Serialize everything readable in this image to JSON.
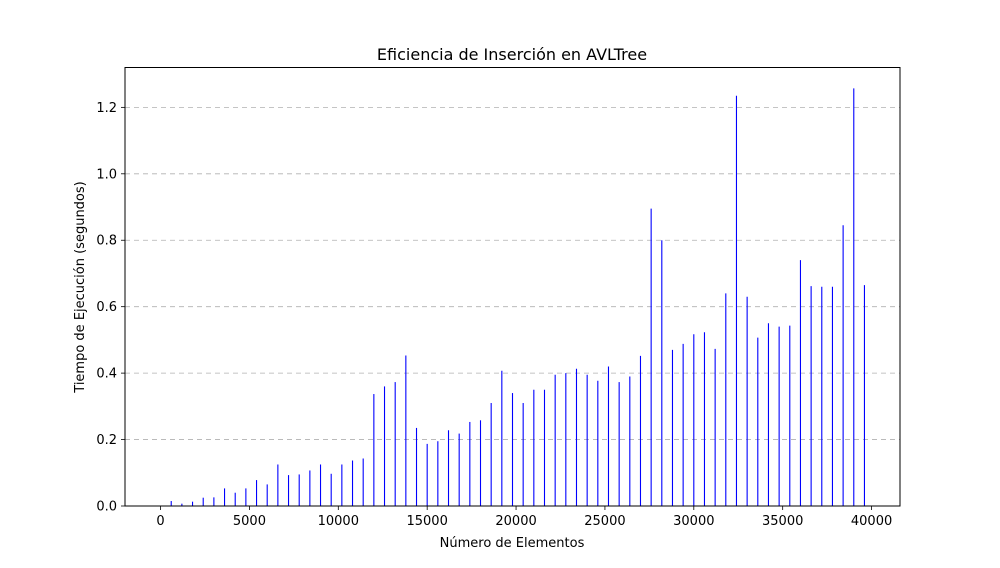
{
  "chart_data": {
    "type": "bar",
    "title": "Eficiencia de Inserción en AVLTree",
    "xlabel": "Número de Elementos",
    "ylabel": "Tiempo de Ejecución (segundos)",
    "xlim": [
      -2000,
      41600
    ],
    "ylim": [
      0,
      1.32
    ],
    "xticks": [
      0,
      5000,
      10000,
      15000,
      20000,
      25000,
      30000,
      35000,
      40000
    ],
    "xtick_labels": [
      "0",
      "5000",
      "10000",
      "15000",
      "20000",
      "25000",
      "30000",
      "35000",
      "40000"
    ],
    "yticks": [
      0.0,
      0.2,
      0.4,
      0.6,
      0.8,
      1.0,
      1.2
    ],
    "ytick_labels": [
      "0.0",
      "0.2",
      "0.4",
      "0.6",
      "0.8",
      "1.0",
      "1.2"
    ],
    "grid": "y-dashed",
    "color": "#0000ff",
    "x": [
      600,
      1200,
      1800,
      2400,
      3000,
      3600,
      4200,
      4800,
      5400,
      6000,
      6600,
      7200,
      7800,
      8400,
      9000,
      9600,
      10200,
      10800,
      11400,
      12000,
      12600,
      13200,
      13800,
      14400,
      15000,
      15600,
      16200,
      16800,
      17400,
      18000,
      18600,
      19200,
      19800,
      20400,
      21000,
      21600,
      22200,
      22800,
      23400,
      24000,
      24600,
      25200,
      25800,
      26400,
      27000,
      27600,
      28200,
      28800,
      29400,
      30000,
      30600,
      31200,
      31800,
      32400,
      33000,
      33600,
      34200,
      34800,
      35400,
      36000,
      36600,
      37200,
      37800,
      38400,
      39000,
      39600
    ],
    "values": [
      0.015,
      0.007,
      0.013,
      0.025,
      0.026,
      0.053,
      0.04,
      0.053,
      0.078,
      0.065,
      0.125,
      0.093,
      0.095,
      0.107,
      0.125,
      0.097,
      0.125,
      0.137,
      0.143,
      0.337,
      0.36,
      0.373,
      0.453,
      0.235,
      0.187,
      0.195,
      0.228,
      0.218,
      0.253,
      0.258,
      0.31,
      0.407,
      0.34,
      0.31,
      0.35,
      0.35,
      0.395,
      0.4,
      0.413,
      0.395,
      0.377,
      0.42,
      0.373,
      0.39,
      0.452,
      0.895,
      0.8,
      0.47,
      0.488,
      0.517,
      0.523,
      0.473,
      0.64,
      1.235,
      0.63,
      0.507,
      0.55,
      0.54,
      0.543,
      0.74,
      0.662,
      0.66,
      0.66,
      0.845,
      1.257,
      0.665
    ]
  }
}
